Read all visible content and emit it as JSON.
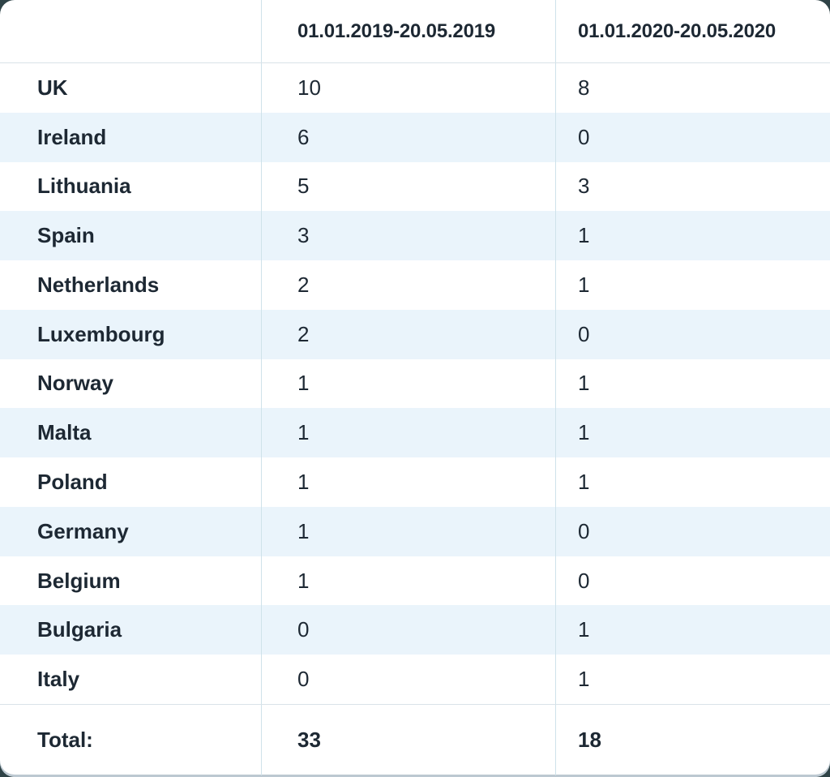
{
  "header": {
    "country_col": "",
    "period1": "01.01.2019-20.05.2019",
    "period2": "01.01.2020-20.05.2020"
  },
  "rows": [
    {
      "country": "UK",
      "period1": "10",
      "period2": "8"
    },
    {
      "country": "Ireland",
      "period1": "6",
      "period2": "0"
    },
    {
      "country": "Lithuania",
      "period1": "5",
      "period2": "3"
    },
    {
      "country": "Spain",
      "period1": "3",
      "period2": "1"
    },
    {
      "country": "Netherlands",
      "period1": "2",
      "period2": "1"
    },
    {
      "country": "Luxembourg",
      "period1": "2",
      "period2": "0"
    },
    {
      "country": "Norway",
      "period1": "1",
      "period2": "1"
    },
    {
      "country": "Malta",
      "period1": "1",
      "period2": "1"
    },
    {
      "country": "Poland",
      "period1": "1",
      "period2": "1"
    },
    {
      "country": "Germany",
      "period1": "1",
      "period2": "0"
    },
    {
      "country": "Belgium",
      "period1": "1",
      "period2": "0"
    },
    {
      "country": "Bulgaria",
      "period1": "0",
      "period2": "1"
    },
    {
      "country": "Italy",
      "period1": "0",
      "period2": "1"
    }
  ],
  "total": {
    "label": "Total:",
    "period1": "33",
    "period2": "18"
  },
  "colors": {
    "card_background": "#ffffff",
    "page_background": "#2f4347",
    "row_stripe": "#eaf4fb",
    "vertical_divider": "#cfe2ea",
    "horizontal_divider": "#d9e2e8",
    "text": "#1d2833"
  },
  "chart_data": {
    "type": "table",
    "title": "",
    "categories": [
      "UK",
      "Ireland",
      "Lithuania",
      "Spain",
      "Netherlands",
      "Luxembourg",
      "Norway",
      "Malta",
      "Poland",
      "Germany",
      "Belgium",
      "Bulgaria",
      "Italy"
    ],
    "series": [
      {
        "name": "01.01.2019-20.05.2019",
        "values": [
          10,
          6,
          5,
          3,
          2,
          2,
          1,
          1,
          1,
          1,
          1,
          0,
          0
        ],
        "total": 33
      },
      {
        "name": "01.01.2020-20.05.2020",
        "values": [
          8,
          0,
          3,
          1,
          1,
          0,
          1,
          1,
          1,
          0,
          0,
          1,
          1
        ],
        "total": 18
      }
    ],
    "layout_hints": {
      "striped_rows": true,
      "total_row": true,
      "first_column_header_empty": true
    }
  }
}
